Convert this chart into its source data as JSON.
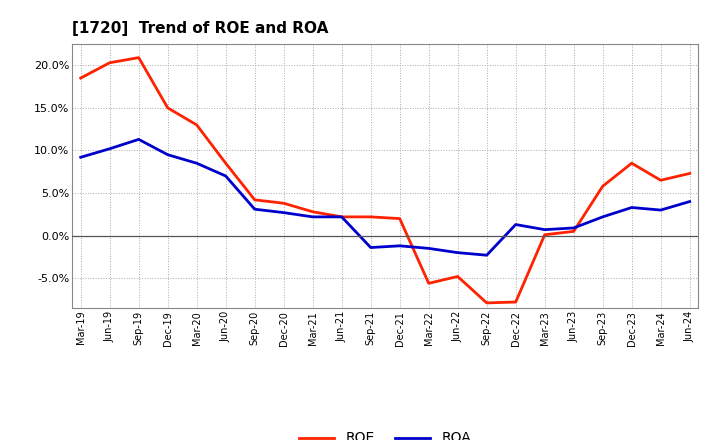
{
  "title": "[1720]  Trend of ROE and ROA",
  "x_labels": [
    "Mar-19",
    "Jun-19",
    "Sep-19",
    "Dec-19",
    "Mar-20",
    "Jun-20",
    "Sep-20",
    "Dec-20",
    "Mar-21",
    "Jun-21",
    "Sep-21",
    "Dec-21",
    "Mar-22",
    "Jun-22",
    "Sep-22",
    "Dec-22",
    "Mar-23",
    "Jun-23",
    "Sep-23",
    "Dec-23",
    "Mar-24",
    "Jun-24"
  ],
  "roe": [
    18.5,
    20.3,
    20.9,
    15.0,
    13.0,
    8.5,
    4.2,
    3.8,
    2.8,
    2.2,
    2.2,
    2.0,
    -5.6,
    -4.8,
    -7.9,
    -7.8,
    0.1,
    0.5,
    5.8,
    8.5,
    6.5,
    7.3
  ],
  "roa": [
    9.2,
    10.2,
    11.3,
    9.5,
    8.5,
    7.0,
    3.1,
    2.7,
    2.2,
    2.2,
    -1.4,
    -1.2,
    -1.5,
    -2.0,
    -2.3,
    1.3,
    0.7,
    0.9,
    2.2,
    3.3,
    3.0,
    4.0
  ],
  "roe_color": "#ff2200",
  "roa_color": "#0000cc",
  "background_color": "#ffffff",
  "grid_color": "#aaaaaa",
  "ylim": [
    -8.5,
    22.5
  ],
  "yticks": [
    -5.0,
    0.0,
    5.0,
    10.0,
    15.0,
    20.0
  ],
  "legend_roe": "ROE",
  "legend_roa": "ROA",
  "linewidth": 2.0
}
